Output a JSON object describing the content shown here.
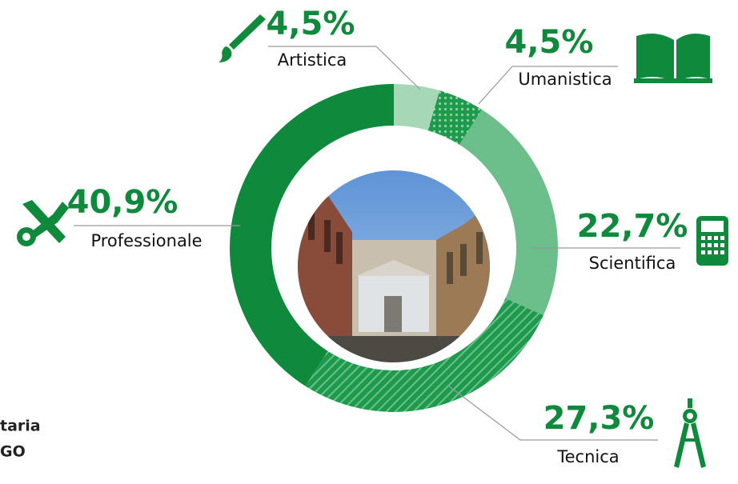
{
  "chart_data": {
    "type": "donut",
    "categories": [
      "Artistica",
      "Umanistica",
      "Scientifica",
      "Tecnica",
      "Professionale"
    ],
    "values": [
      4.5,
      4.5,
      22.7,
      27.3,
      40.9
    ],
    "value_labels": [
      "4,5%",
      "4,5%",
      "22,7%",
      "27,3%",
      "40,9%"
    ],
    "colors": [
      "#a6d8b8",
      "#1e9a4c",
      "#6cbe8b",
      "#1e9a4c",
      "#0f8a3c"
    ],
    "footer_lines": [
      "taria",
      "GO"
    ]
  }
}
